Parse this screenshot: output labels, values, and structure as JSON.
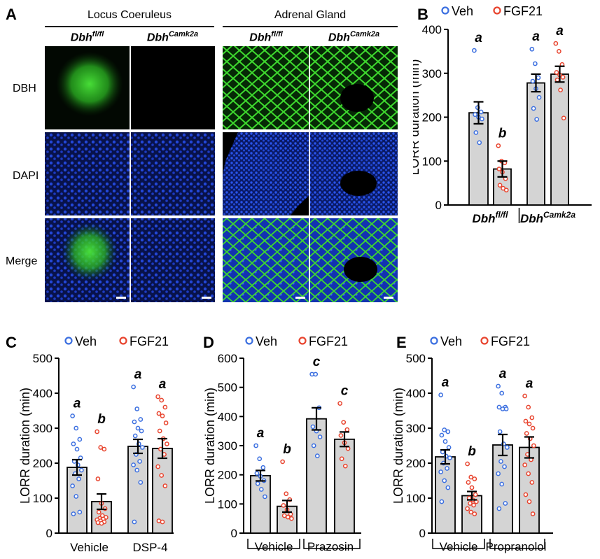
{
  "panels": {
    "A": "A",
    "B": "B",
    "C": "C",
    "D": "D",
    "E": "E"
  },
  "panelA": {
    "region_left": "Locus Coeruleus",
    "region_right": "Adrenal Gland",
    "genotypes": [
      {
        "base": "Dbh",
        "sup": "fl/fl"
      },
      {
        "base": "Dbh",
        "sup": "Camk2a"
      },
      {
        "base": "Dbh",
        "sup": "fl/fl"
      },
      {
        "base": "Dbh",
        "sup": "Camk2a"
      }
    ],
    "rows": [
      "DBH",
      "DAPI",
      "Merge"
    ],
    "colors": {
      "dbh": "#39d62c",
      "dapi": "#1b3fd1",
      "background": "#000000"
    }
  },
  "chart_data": [
    {
      "panel": "B",
      "type": "bar",
      "ylabel": "LORR duration (min)",
      "ylim": [
        0,
        400
      ],
      "yticks": [
        0,
        100,
        200,
        300,
        400
      ],
      "legend": {
        "placement": "top",
        "entries": [
          "Veh",
          "FGF21"
        ]
      },
      "group_labels": [
        {
          "base": "Dbh",
          "sup": "fl/fl"
        },
        {
          "base": "Dbh",
          "sup": "Camk2a"
        }
      ],
      "bar_color": "#d4d4d4",
      "series_colors": {
        "Veh": "#3b6fe0",
        "FGF21": "#e8442e"
      },
      "bars": [
        {
          "group": 0,
          "series": "Veh",
          "mean": 210,
          "sem": 25,
          "letter": "a",
          "points": [
            352,
            222,
            212,
            206,
            200,
            196,
            165,
            142
          ]
        },
        {
          "group": 0,
          "series": "FGF21",
          "mean": 82,
          "sem": 18,
          "letter": "b",
          "points": [
            135,
            100,
            96,
            82,
            75,
            60,
            45,
            38,
            34
          ]
        },
        {
          "group": 1,
          "series": "Veh",
          "mean": 278,
          "sem": 20,
          "letter": "a",
          "points": [
            355,
            322,
            290,
            282,
            265,
            245,
            220,
            195
          ]
        },
        {
          "group": 1,
          "series": "FGF21",
          "mean": 298,
          "sem": 18,
          "letter": "a",
          "points": [
            368,
            350,
            320,
            302,
            296,
            291,
            285,
            262,
            198
          ]
        }
      ]
    },
    {
      "panel": "C",
      "type": "bar",
      "ylabel": "LORR duration (min)",
      "ylim": [
        0,
        500
      ],
      "yticks": [
        0,
        100,
        200,
        300,
        400,
        500
      ],
      "legend": {
        "placement": "top",
        "entries": [
          "Veh",
          "FGF21"
        ]
      },
      "group_labels": [
        "Vehicle",
        "DSP-4"
      ],
      "bar_color": "#d4d4d4",
      "series_colors": {
        "Veh": "#3b6fe0",
        "FGF21": "#e8442e"
      },
      "bars": [
        {
          "group": 0,
          "series": "Veh",
          "mean": 188,
          "sem": 22,
          "letter": "a",
          "points": [
            335,
            300,
            268,
            255,
            240,
            215,
            205,
            195,
            180,
            170,
            155,
            135,
            105,
            60,
            55
          ]
        },
        {
          "group": 0,
          "series": "FGF21",
          "mean": 90,
          "sem": 22,
          "letter": "b",
          "points": [
            290,
            245,
            240,
            155,
            85,
            70,
            60,
            50,
            45,
            42,
            40,
            38,
            35,
            32,
            30,
            28
          ]
        },
        {
          "group": 1,
          "series": "Veh",
          "mean": 248,
          "sem": 20,
          "letter": "a",
          "points": [
            418,
            355,
            325,
            318,
            300,
            292,
            278,
            255,
            245,
            225,
            205,
            195,
            180,
            145,
            32
          ]
        },
        {
          "group": 1,
          "series": "FGF21",
          "mean": 242,
          "sem": 28,
          "letter": "a",
          "points": [
            390,
            380,
            360,
            342,
            335,
            315,
            292,
            270,
            255,
            240,
            225,
            190,
            165,
            135,
            35,
            32
          ]
        }
      ]
    },
    {
      "panel": "D",
      "type": "bar",
      "ylabel": "LORR duration (min)",
      "ylim": [
        0,
        600
      ],
      "yticks": [
        0,
        100,
        200,
        300,
        400,
        500,
        600
      ],
      "legend": {
        "placement": "top",
        "entries": [
          "Veh",
          "FGF21"
        ]
      },
      "group_labels": [
        "Vehicle",
        "Prazosin"
      ],
      "bar_color": "#d4d4d4",
      "series_colors": {
        "Veh": "#3b6fe0",
        "FGF21": "#e8442e"
      },
      "bars": [
        {
          "group": 0,
          "series": "Veh",
          "mean": 197,
          "sem": 18,
          "letter": "a",
          "points": [
            300,
            255,
            225,
            205,
            195,
            180,
            170,
            150,
            125
          ]
        },
        {
          "group": 0,
          "series": "FGF21",
          "mean": 92,
          "sem": 20,
          "letter": "b",
          "points": [
            245,
            135,
            115,
            95,
            80,
            65,
            60,
            55,
            50
          ]
        },
        {
          "group": 1,
          "series": "Veh",
          "mean": 392,
          "sem": 38,
          "letter": "c",
          "points": [
            545,
            545,
            430,
            365,
            350,
            330,
            300,
            265
          ]
        },
        {
          "group": 1,
          "series": "FGF21",
          "mean": 322,
          "sem": 25,
          "letter": "c",
          "points": [
            445,
            380,
            355,
            335,
            310,
            290,
            255,
            230
          ]
        }
      ]
    },
    {
      "panel": "E",
      "type": "bar",
      "ylabel": "LORR duration (min)",
      "ylim": [
        0,
        500
      ],
      "yticks": [
        0,
        100,
        200,
        300,
        400,
        500
      ],
      "legend": {
        "placement": "top",
        "entries": [
          "Veh",
          "FGF21"
        ]
      },
      "group_labels": [
        "Vehicle",
        "Propranolol"
      ],
      "bar_color": "#d4d4d4",
      "series_colors": {
        "Veh": "#3b6fe0",
        "FGF21": "#e8442e"
      },
      "bars": [
        {
          "group": 0,
          "series": "Veh",
          "mean": 218,
          "sem": 20,
          "letter": "a",
          "points": [
            395,
            295,
            290,
            280,
            262,
            245,
            232,
            220,
            215,
            200,
            185,
            175,
            150,
            130,
            90
          ]
        },
        {
          "group": 0,
          "series": "FGF21",
          "mean": 107,
          "sem": 12,
          "letter": "b",
          "points": [
            198,
            160,
            155,
            145,
            130,
            110,
            100,
            95,
            90,
            85,
            80,
            70,
            60,
            55
          ]
        },
        {
          "group": 1,
          "series": "Veh",
          "mean": 252,
          "sem": 30,
          "letter": "a",
          "points": [
            420,
            400,
            360,
            360,
            355,
            355,
            290,
            255,
            245,
            205,
            190,
            170,
            140,
            85,
            70
          ]
        },
        {
          "group": 1,
          "series": "FGF21",
          "mean": 245,
          "sem": 30,
          "letter": "a",
          "points": [
            392,
            360,
            330,
            320,
            312,
            300,
            285,
            270,
            250,
            225,
            210,
            195,
            170,
            145,
            110,
            90,
            55
          ]
        }
      ]
    }
  ]
}
